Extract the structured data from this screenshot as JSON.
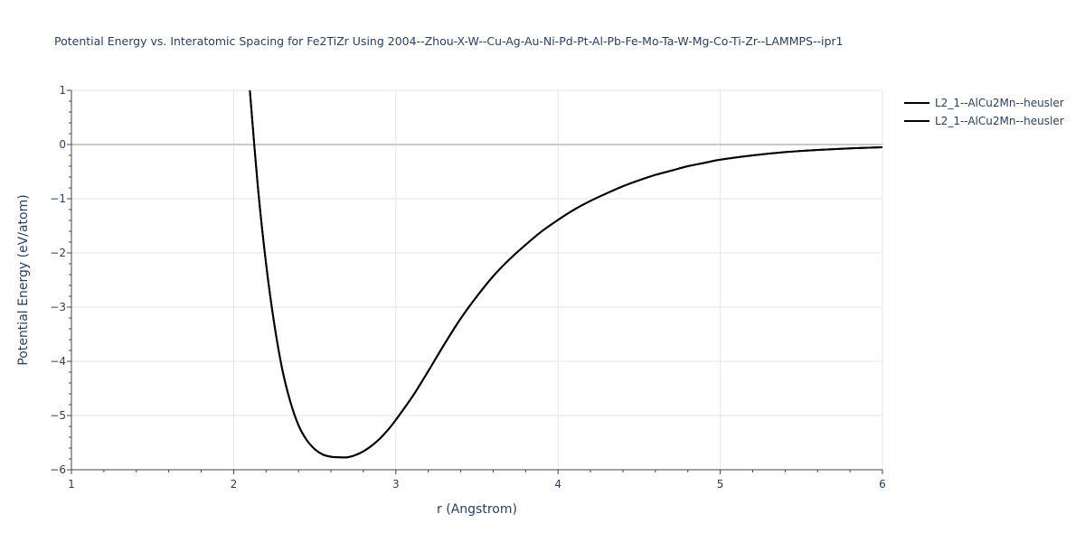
{
  "chart_data": {
    "type": "line",
    "title": "Potential Energy vs. Interatomic Spacing for Fe2TiZr Using 2004--Zhou-X-W--Cu-Ag-Au-Ni-Pd-Pt-Al-Pb-Fe-Mo-Ta-W-Mg-Co-Ti-Zr--LAMMPS--ipr1",
    "xlabel": "r (Angstrom)",
    "ylabel": "Potential Energy (eV/atom)",
    "xlim": [
      1,
      6
    ],
    "ylim": [
      -6,
      1
    ],
    "xticks": [
      {
        "value": 1,
        "label": "1"
      },
      {
        "value": 2,
        "label": "2"
      },
      {
        "value": 3,
        "label": "3"
      },
      {
        "value": 4,
        "label": "4"
      },
      {
        "value": 5,
        "label": "5"
      },
      {
        "value": 6,
        "label": "6"
      }
    ],
    "yticks": [
      {
        "value": 1,
        "label": "1"
      },
      {
        "value": 0,
        "label": "0"
      },
      {
        "value": -1,
        "label": "−1"
      },
      {
        "value": -2,
        "label": "−2"
      },
      {
        "value": -3,
        "label": "−3"
      },
      {
        "value": -4,
        "label": "−4"
      },
      {
        "value": -5,
        "label": "−5"
      },
      {
        "value": -6,
        "label": "−6"
      }
    ],
    "grid": true,
    "legend_position": "top-right",
    "series": [
      {
        "name": "L2_1--AlCu2Mn--heusler",
        "color": "#000000",
        "x": [
          2.1,
          2.15,
          2.2,
          2.25,
          2.3,
          2.35,
          2.4,
          2.45,
          2.5,
          2.55,
          2.6,
          2.65,
          2.7,
          2.75,
          2.8,
          2.85,
          2.9,
          2.95,
          3.0,
          3.1,
          3.2,
          3.3,
          3.4,
          3.5,
          3.6,
          3.7,
          3.8,
          3.9,
          4.0,
          4.1,
          4.2,
          4.3,
          4.4,
          4.5,
          4.6,
          4.7,
          4.8,
          4.9,
          5.0,
          5.2,
          5.4,
          5.6,
          5.8,
          6.0
        ],
        "y": [
          1.0,
          -0.8,
          -2.2,
          -3.3,
          -4.15,
          -4.75,
          -5.18,
          -5.45,
          -5.62,
          -5.72,
          -5.76,
          -5.77,
          -5.77,
          -5.73,
          -5.66,
          -5.56,
          -5.43,
          -5.27,
          -5.08,
          -4.66,
          -4.18,
          -3.68,
          -3.21,
          -2.8,
          -2.43,
          -2.12,
          -1.85,
          -1.6,
          -1.39,
          -1.2,
          -1.04,
          -0.9,
          -0.77,
          -0.66,
          -0.56,
          -0.48,
          -0.4,
          -0.34,
          -0.28,
          -0.2,
          -0.14,
          -0.1,
          -0.07,
          -0.05
        ]
      },
      {
        "name": "L2_1--AlCu2Mn--heusler",
        "color": "#000000",
        "x": [
          2.1,
          2.15,
          2.2,
          2.25,
          2.3,
          2.35,
          2.4,
          2.45,
          2.5,
          2.55,
          2.6,
          2.65,
          2.7,
          2.75,
          2.8,
          2.85,
          2.9,
          2.95,
          3.0,
          3.1,
          3.2,
          3.3,
          3.4,
          3.5,
          3.6,
          3.7,
          3.8,
          3.9,
          4.0,
          4.1,
          4.2,
          4.3,
          4.4,
          4.5,
          4.6,
          4.7,
          4.8,
          4.9,
          5.0,
          5.2,
          5.4,
          5.6,
          5.8,
          6.0
        ],
        "y": [
          1.0,
          -0.8,
          -2.2,
          -3.3,
          -4.15,
          -4.75,
          -5.18,
          -5.45,
          -5.62,
          -5.72,
          -5.76,
          -5.77,
          -5.77,
          -5.73,
          -5.66,
          -5.56,
          -5.43,
          -5.27,
          -5.08,
          -4.66,
          -4.18,
          -3.68,
          -3.21,
          -2.8,
          -2.43,
          -2.12,
          -1.85,
          -1.6,
          -1.39,
          -1.2,
          -1.04,
          -0.9,
          -0.77,
          -0.66,
          -0.56,
          -0.48,
          -0.4,
          -0.34,
          -0.28,
          -0.2,
          -0.14,
          -0.1,
          -0.07,
          -0.05
        ]
      }
    ]
  }
}
